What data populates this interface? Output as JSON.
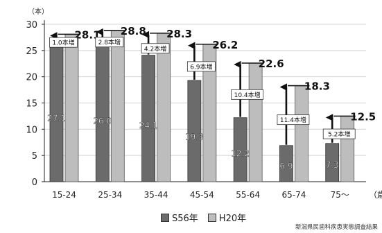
{
  "chart_data": {
    "type": "bar",
    "title": "",
    "unit_label": "（本）",
    "xlabel": "（歳）",
    "ylabel": "",
    "ylim": [
      0,
      30
    ],
    "yticks": [
      0,
      5,
      10,
      15,
      20,
      25,
      30
    ],
    "grid": true,
    "legend_position": "bottom",
    "categories": [
      "15-24",
      "25-34",
      "35-44",
      "45-54",
      "55-64",
      "65-74",
      "75～"
    ],
    "series": [
      {
        "name": "S56年",
        "color": "#6b6b6b",
        "values": [
          27.1,
          26.0,
          24.1,
          19.3,
          12.2,
          6.9,
          7.3
        ],
        "labels": [
          "27.1",
          "26.0",
          "24.1",
          "19.3",
          "12.2",
          "6.9",
          "7.3"
        ]
      },
      {
        "name": "H20年",
        "color": "#bdbdbd",
        "values": [
          28.1,
          28.8,
          28.3,
          26.2,
          22.6,
          18.3,
          12.5
        ],
        "labels": [
          "28.1",
          "28.8",
          "28.3",
          "26.2",
          "22.6",
          "18.3",
          "12.5"
        ]
      }
    ],
    "increase_labels": [
      "1.0本増",
      "2.8本増",
      "4.2本増",
      "6.9本増",
      "10.4本増",
      "11.4本増",
      "5.2本増"
    ],
    "source": "新潟県民歯科疾患実態調査結果"
  }
}
